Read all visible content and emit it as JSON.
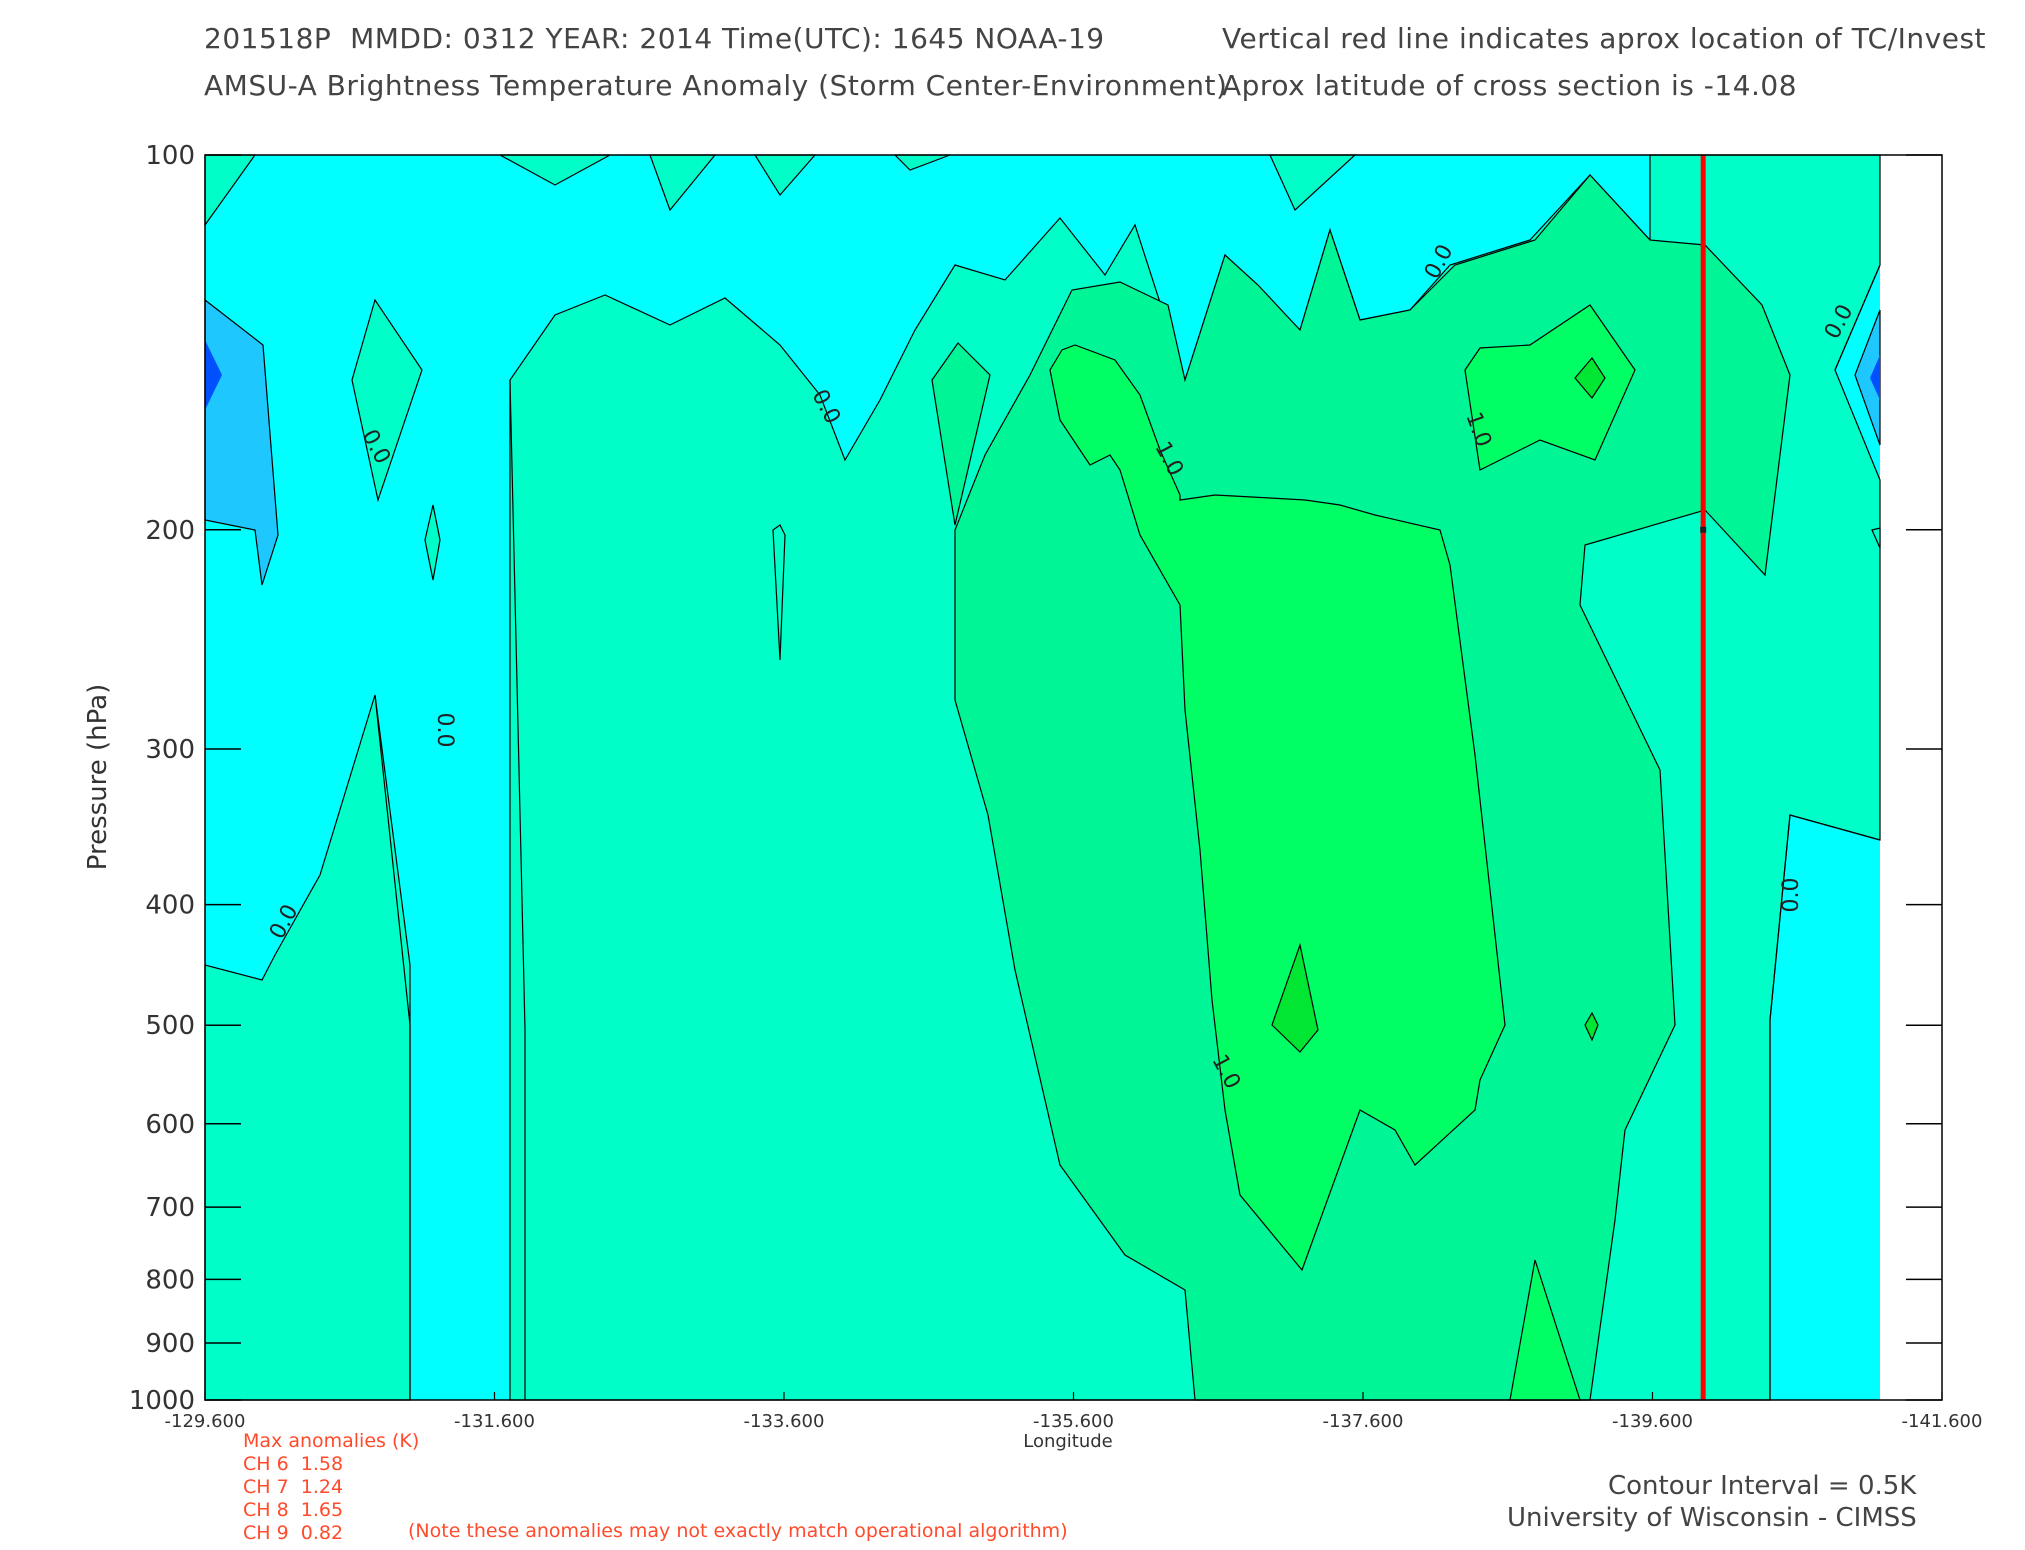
{
  "header": {
    "line1_left": "201518P  MMDD: 0312 YEAR: 2014 Time(UTC): 1645 NOAA-19",
    "line2_left": "AMSU-A Brightness Temperature Anomaly (Storm Center-Environment)",
    "line1_right": "Vertical red line indicates aprox location of TC/Invest",
    "line2_right": "Aprox latitude of cross section is -14.08"
  },
  "chart_data": {
    "type": "contour",
    "xlabel": "Longitude",
    "ylabel": "Pressure (hPa)",
    "xlim": [
      -129.6,
      -141.6
    ],
    "ylim": [
      1000,
      100
    ],
    "y_scale": "log",
    "x_ticks": [
      -129.6,
      -131.6,
      -133.6,
      -135.6,
      -137.6,
      -139.6,
      -141.6
    ],
    "x_tick_labels": [
      "-129.600",
      "-131.600",
      "-133.600",
      "-135.600",
      "-137.600",
      "-139.600",
      "-141.600"
    ],
    "y_ticks": [
      100,
      200,
      300,
      400,
      500,
      600,
      700,
      800,
      900,
      1000
    ],
    "y_tick_labels": [
      "100",
      "200",
      "300",
      "400",
      "500",
      "600",
      "700",
      "800",
      "900",
      "1000"
    ],
    "storm_longitude": -139.95,
    "contour_labels": [
      "0.0",
      "0.0",
      "0.0",
      "0.0",
      "0.0",
      "0.0",
      "0.0",
      "1.0",
      "1.0",
      "1.0"
    ],
    "colors": {
      "below_-0.5": "#1ec8ff",
      "-0.5_to_0.0": "#00ffff",
      "0.0_to_0.5": "#00ffc8",
      "0.5_to_1.0": "#00f596",
      "1.0_to_1.5": "#00ff64",
      "above_1.5": "#00e632",
      "min": "#0050ff",
      "storm_line": "#ff0000"
    }
  },
  "anomalies": {
    "title": "Max anomalies (K)",
    "rows": [
      {
        "ch": "CH 6",
        "val": "1.58"
      },
      {
        "ch": "CH 7",
        "val": "1.24"
      },
      {
        "ch": "CH 8",
        "val": "1.65"
      },
      {
        "ch": "CH 9",
        "val": "0.82"
      }
    ],
    "note": "(Note these anomalies may not exactly match operational algorithm)"
  },
  "footer": {
    "contour_interval": "Contour Interval = 0.5K",
    "credit": "University of Wisconsin - CIMSS"
  }
}
